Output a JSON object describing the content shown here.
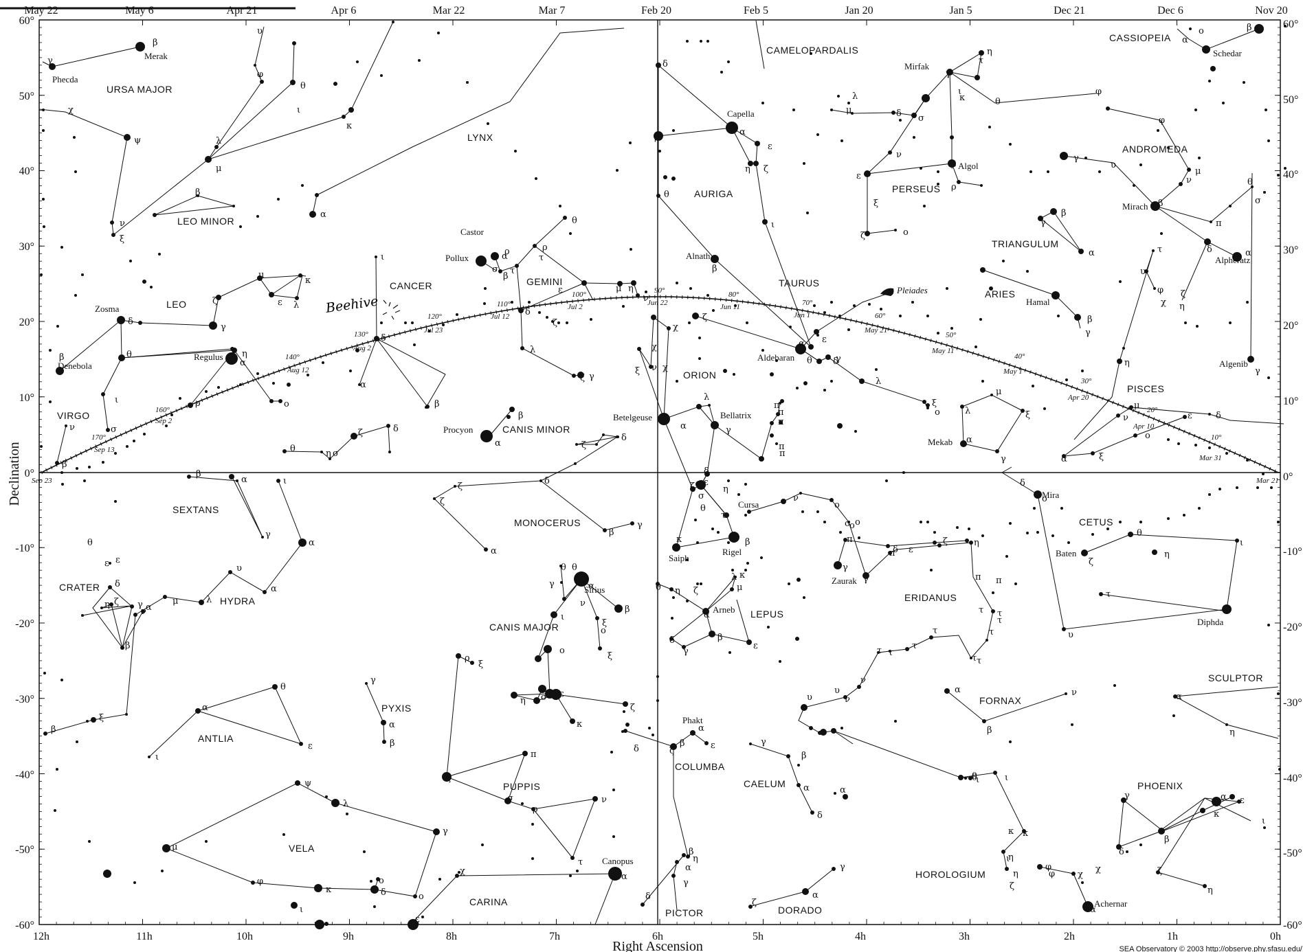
{
  "axes": {
    "x_label": "Right Ascension",
    "y_label": "Declination",
    "dec_ticks": [
      "60°",
      "50°",
      "40°",
      "30°",
      "20°",
      "10°",
      "0°",
      "-10°",
      "-20°",
      "-30°",
      "-40°",
      "-50°",
      "-60°"
    ],
    "ra_ticks": [
      "12h",
      "11h",
      "10h",
      "9h",
      "8h",
      "7h",
      "6h",
      "5h",
      "4h",
      "3h",
      "2h",
      "1h",
      "0h"
    ],
    "date_ticks": [
      "May 22",
      "May 6",
      "Apr 21",
      "Apr 6",
      "Mar 22",
      "Mar 7",
      "Feb 20",
      "Feb 5",
      "Jan 20",
      "Jan 5",
      "Dec 21",
      "Dec 6",
      "Nov 20"
    ]
  },
  "constellations": [
    "URSA MAJOR",
    "LEO MINOR",
    "LYNX",
    "CAMELOPARDALIS",
    "CASSIOPEIA",
    "AURIGA",
    "PERSEUS",
    "ANDROMEDA",
    "TRIANGULUM",
    "ARIES",
    "TAURUS",
    "GEMINI",
    "CANCER",
    "LEO",
    "VIRGO",
    "CANIS MINOR",
    "ORION",
    "PISCES",
    "CETUS",
    "SEXTANS",
    "MONOCERUS",
    "CRATER",
    "HYDRA",
    "CANIS MAJOR",
    "LEPUS",
    "ERIDANUS",
    "FORNAX",
    "SCULPTOR",
    "PYXIS",
    "ANTLIA",
    "PUPPIS",
    "COLUMBA",
    "CAELUM",
    "PHOENIX",
    "VELA",
    "HOROLOGIUM",
    "CARINA",
    "DORADO",
    "PICTOR"
  ],
  "stars": [
    "Merak",
    "Phecda",
    "Schedar",
    "Capella",
    "Mirfak",
    "Algol",
    "Mirach",
    "Alnath",
    "Alpheratz",
    "Castor",
    "Pollux",
    "Hamal",
    "Zosma",
    "Denebola",
    "Regulus",
    "Aldebaran",
    "Algenib",
    "Procyon",
    "Betelgeuse",
    "Bellatrix",
    "Mekab",
    "Mira",
    "Baten",
    "Cursa",
    "Rigel",
    "Saiph",
    "Zaurak",
    "Sirius",
    "Arneb",
    "Diphda",
    "Phakt",
    "Canopus",
    "Achernar"
  ],
  "annotations": {
    "beehive": "Beehive",
    "pleiades": "Pleiades"
  },
  "ecliptic_marks": {
    "degrees": [
      "10°",
      "20°",
      "30°",
      "40°",
      "50°",
      "60°",
      "70°",
      "80°",
      "90°",
      "100°",
      "110°",
      "120°",
      "130°",
      "140°",
      "160°",
      "170°"
    ],
    "dates": [
      "Mar 31",
      "Apr 10",
      "Apr 20",
      "May 1",
      "May 11",
      "May 21",
      "Jun 1",
      "Jun 11",
      "Jun 22",
      "Jul 2",
      "Jul 12",
      "Jul 23",
      "Aug 2",
      "Aug 12",
      "Sep 2",
      "Sep 13",
      "Sep 23",
      "Mar 21"
    ]
  },
  "credit": "SEA Observatory © 2003 http://observe.phy.sfasu.edu/",
  "colors": {
    "ink": "#111111",
    "paper": "#ffffff"
  }
}
